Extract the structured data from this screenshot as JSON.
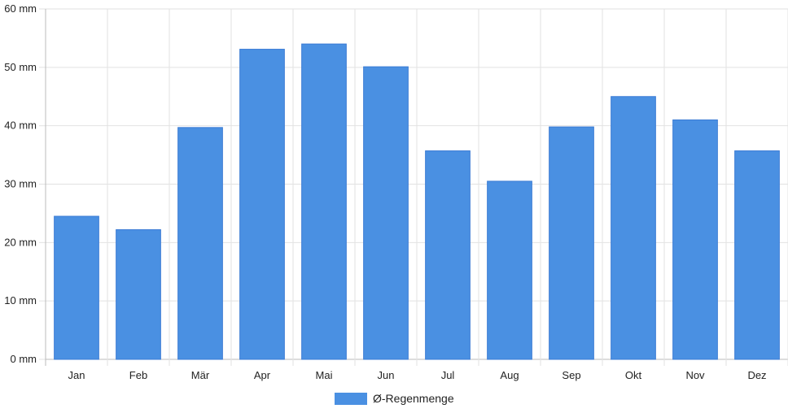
{
  "chart_data": {
    "type": "bar",
    "categories": [
      "Jan",
      "Feb",
      "Mär",
      "Apr",
      "Mai",
      "Jun",
      "Jul",
      "Aug",
      "Sep",
      "Okt",
      "Nov",
      "Dez"
    ],
    "series": [
      {
        "name": "Ø-Regenmenge",
        "values": [
          24.5,
          22.2,
          39.7,
          53.1,
          54.0,
          50.1,
          35.7,
          30.5,
          39.8,
          45.0,
          41.0,
          35.7
        ],
        "color": "#4a90e2"
      }
    ],
    "y_ticks": [
      "0 mm",
      "10 mm",
      "20 mm",
      "30 mm",
      "40 mm",
      "50 mm",
      "60 mm"
    ],
    "ylim": [
      0,
      60
    ],
    "unit": "mm",
    "grid": true,
    "legend_position": "bottom"
  }
}
